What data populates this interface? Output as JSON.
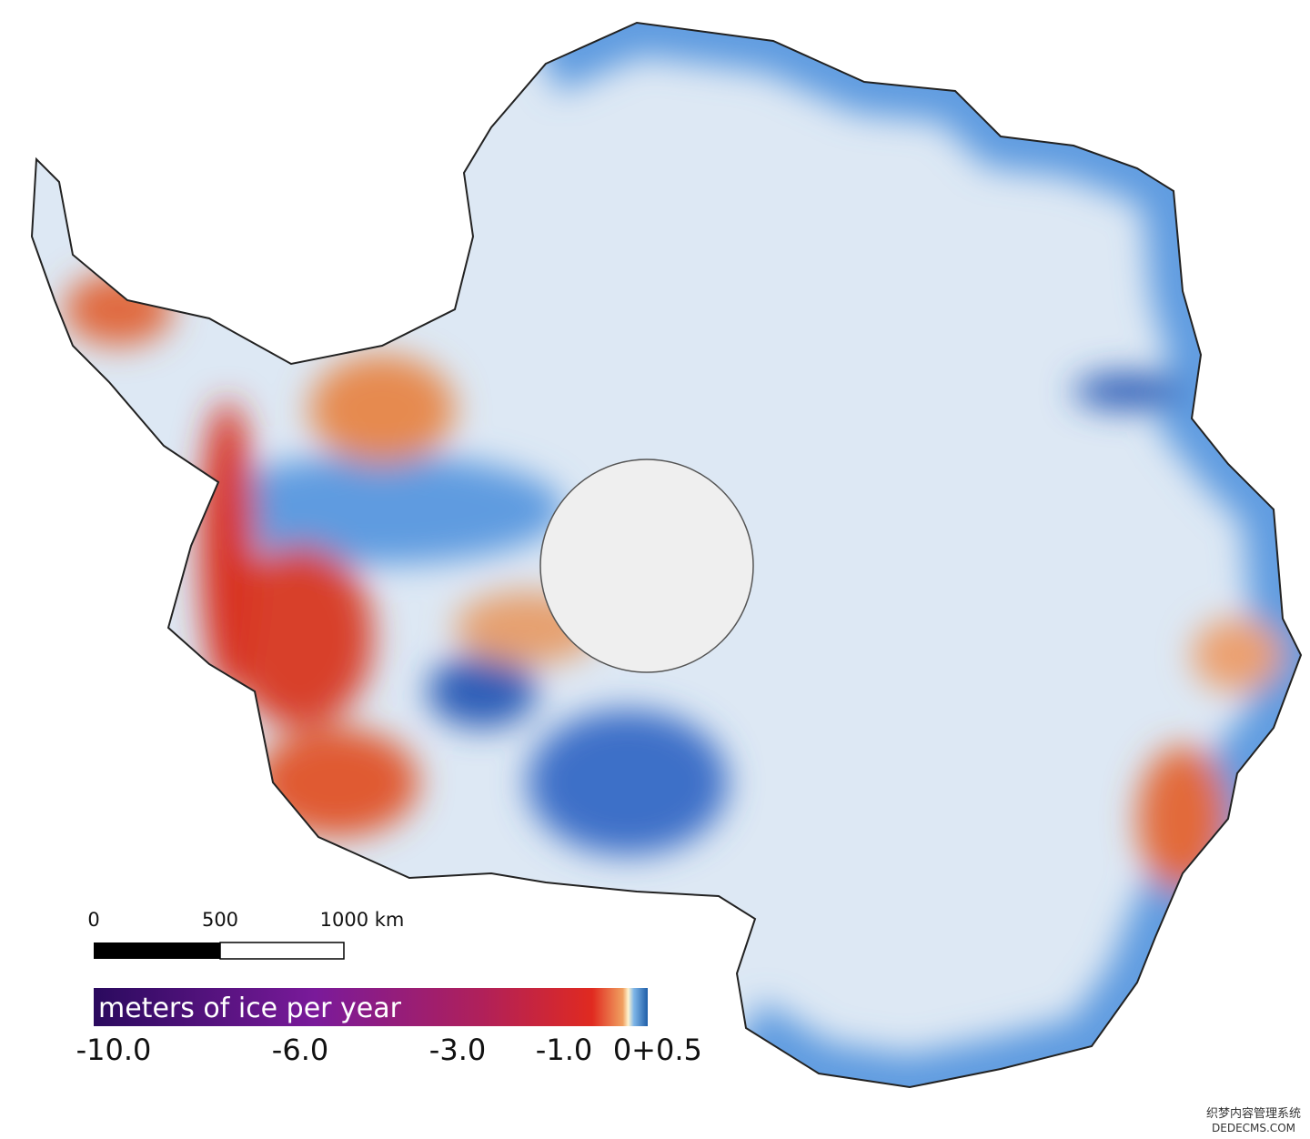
{
  "scale_bar": {
    "labels": [
      "0",
      "500",
      "1000 km"
    ]
  },
  "legend": {
    "title": "meters of ice per year",
    "ticks": [
      "-10.0",
      "-6.0",
      "-3.0",
      "-1.0",
      "0",
      "+0.5"
    ]
  },
  "watermark": {
    "line1": "织梦内容管理系统",
    "line2": "DEDECMS.COM"
  }
}
